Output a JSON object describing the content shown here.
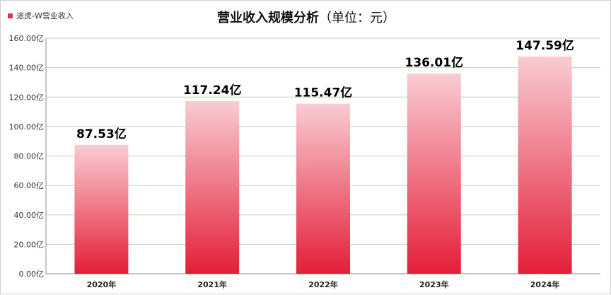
{
  "colors": {
    "bar_top": "#f9ccd3",
    "bar_bottom": "#e41e38",
    "grid": "#b9d8b4",
    "axis": "#8c8c8c",
    "legend_swatch": "#e0344a"
  },
  "chart_data": {
    "type": "bar",
    "title": "营业收入规模分析",
    "title_unit": "（单位：元）",
    "categories": [
      "2020年",
      "2021年",
      "2022年",
      "2023年",
      "2024年"
    ],
    "series": [
      {
        "name": "途虎-W营业收入",
        "values": [
          87.53,
          117.24,
          115.47,
          136.01,
          147.59
        ],
        "data_labels": [
          "87.53亿",
          "117.24亿",
          "115.47亿",
          "136.01亿",
          "147.59亿"
        ]
      }
    ],
    "ylim": [
      0,
      160
    ],
    "yticks": [
      0,
      20,
      40,
      60,
      80,
      100,
      120,
      140,
      160
    ],
    "ytick_labels": [
      "0.00亿",
      "20.00亿",
      "40.00亿",
      "60.00亿",
      "80.00亿",
      "100.00亿",
      "120.00亿",
      "140.00亿",
      "160.00亿"
    ],
    "grid": true,
    "legend_position": "top-left"
  }
}
